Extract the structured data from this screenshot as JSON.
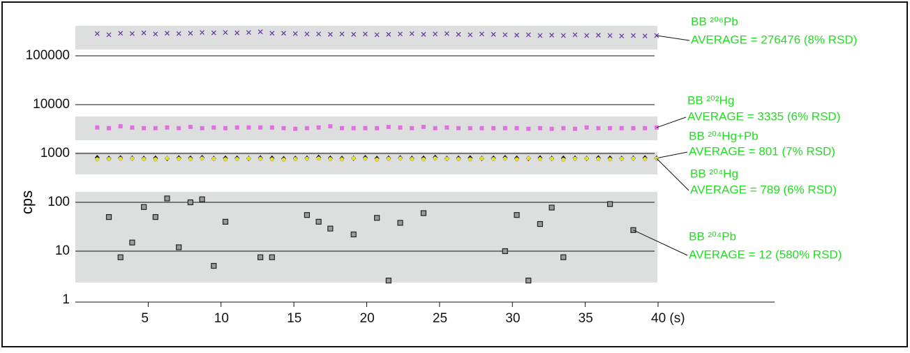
{
  "chart_data": {
    "type": "scatter",
    "ylabel": "cps",
    "log_y": true,
    "grid": true,
    "xlim": [
      0,
      48
    ],
    "xticks": [
      5,
      10,
      15,
      20,
      25,
      30,
      35,
      {
        "value": 40,
        "label": "40 (s)"
      }
    ],
    "ylim": [
      1,
      1000000
    ],
    "yticks": [
      1,
      10,
      100,
      1000,
      10000,
      100000
    ],
    "x": [
      1.5,
      2.3,
      3.1,
      3.9,
      4.7,
      5.5,
      6.3,
      7.1,
      7.9,
      8.7,
      9.5,
      10.3,
      11.1,
      11.9,
      12.7,
      13.5,
      14.3,
      15.1,
      15.9,
      16.7,
      17.5,
      18.3,
      19.1,
      19.9,
      20.7,
      21.5,
      22.3,
      23.1,
      23.9,
      24.7,
      25.5,
      26.3,
      27.1,
      27.9,
      28.7,
      29.5,
      30.3,
      31.1,
      31.9,
      32.7,
      33.5,
      34.3,
      35.1,
      35.9,
      36.7,
      37.5,
      38.3,
      39.1,
      39.9
    ],
    "series": [
      {
        "name": "BB ²⁰⁶Pb",
        "annotation": "AVERAGE = 276476  (8% RSD)",
        "color": "#6a3ca8",
        "marker": "x",
        "values": [
          285000,
          270000,
          290000,
          285000,
          295000,
          280000,
          290000,
          285000,
          290000,
          300000,
          295000,
          300000,
          295000,
          300000,
          310000,
          290000,
          290000,
          285000,
          280000,
          280000,
          275000,
          280000,
          275000,
          280000,
          270000,
          275000,
          280000,
          285000,
          275000,
          280000,
          285000,
          275000,
          270000,
          280000,
          275000,
          270000,
          265000,
          270000,
          260000,
          265000,
          260000,
          270000,
          260000,
          265000,
          260000,
          255000,
          260000,
          255000,
          260000
        ]
      },
      {
        "name": "BB ²⁰²Hg",
        "annotation": "AVERAGE = 3335 (6% RSD)",
        "color": "#e070e0",
        "marker": "square",
        "values": [
          3400,
          3300,
          3600,
          3400,
          3300,
          3300,
          3400,
          3300,
          3500,
          3300,
          3400,
          3300,
          3400,
          3400,
          3400,
          3400,
          3300,
          3200,
          3300,
          3400,
          3600,
          3300,
          3300,
          3300,
          3300,
          3500,
          3400,
          3300,
          3500,
          3300,
          3400,
          3300,
          3300,
          3300,
          3300,
          3300,
          3300,
          3200,
          3300,
          3200,
          3300,
          3200,
          3400,
          3300,
          3300,
          3300,
          3300,
          3300,
          3400
        ]
      },
      {
        "name": "BB ²⁰⁴Hg+Pb",
        "annotation": "AVERAGE = 801 (7% RSD)",
        "color": "#111111",
        "marker": "diamond",
        "values": [
          820,
          790,
          810,
          800,
          790,
          800,
          790,
          810,
          800,
          820,
          790,
          800,
          800,
          790,
          810,
          800,
          780,
          790,
          800,
          830,
          800,
          790,
          800,
          820,
          790,
          800,
          810,
          790,
          800,
          830,
          790,
          800,
          810,
          790,
          800,
          820,
          800,
          790,
          810,
          790,
          800,
          800,
          790,
          810,
          800,
          790,
          800,
          810,
          800
        ]
      },
      {
        "name": "BB ²⁰⁴Hg",
        "annotation": "AVERAGE = 789 (6% RSD)",
        "color": "#e8e020",
        "marker": "circle",
        "values": [
          760,
          770,
          780,
          790,
          770,
          760,
          800,
          780,
          770,
          790,
          780,
          760,
          770,
          790,
          780,
          760,
          750,
          770,
          780,
          790,
          770,
          760,
          800,
          780,
          750,
          780,
          790,
          770,
          760,
          790,
          780,
          770,
          760,
          790,
          770,
          780,
          760,
          800,
          770,
          780,
          750,
          780,
          790,
          770,
          760,
          780,
          790,
          770,
          790
        ]
      },
      {
        "name": "BB ²⁰⁴Pb",
        "annotation": "AVERAGE = 12  (580% RSD)",
        "color": "#222222",
        "marker": "box",
        "values": [
          null,
          50,
          7.5,
          15,
          80,
          50,
          120,
          12,
          100,
          115,
          5,
          40,
          null,
          null,
          7.5,
          7.5,
          null,
          null,
          55,
          40,
          29,
          null,
          22,
          null,
          48,
          2.5,
          38,
          null,
          60,
          null,
          null,
          null,
          null,
          null,
          null,
          10,
          55,
          2.5,
          36,
          78,
          7.5,
          null,
          null,
          null,
          92,
          null,
          27,
          null,
          null
        ]
      }
    ]
  }
}
